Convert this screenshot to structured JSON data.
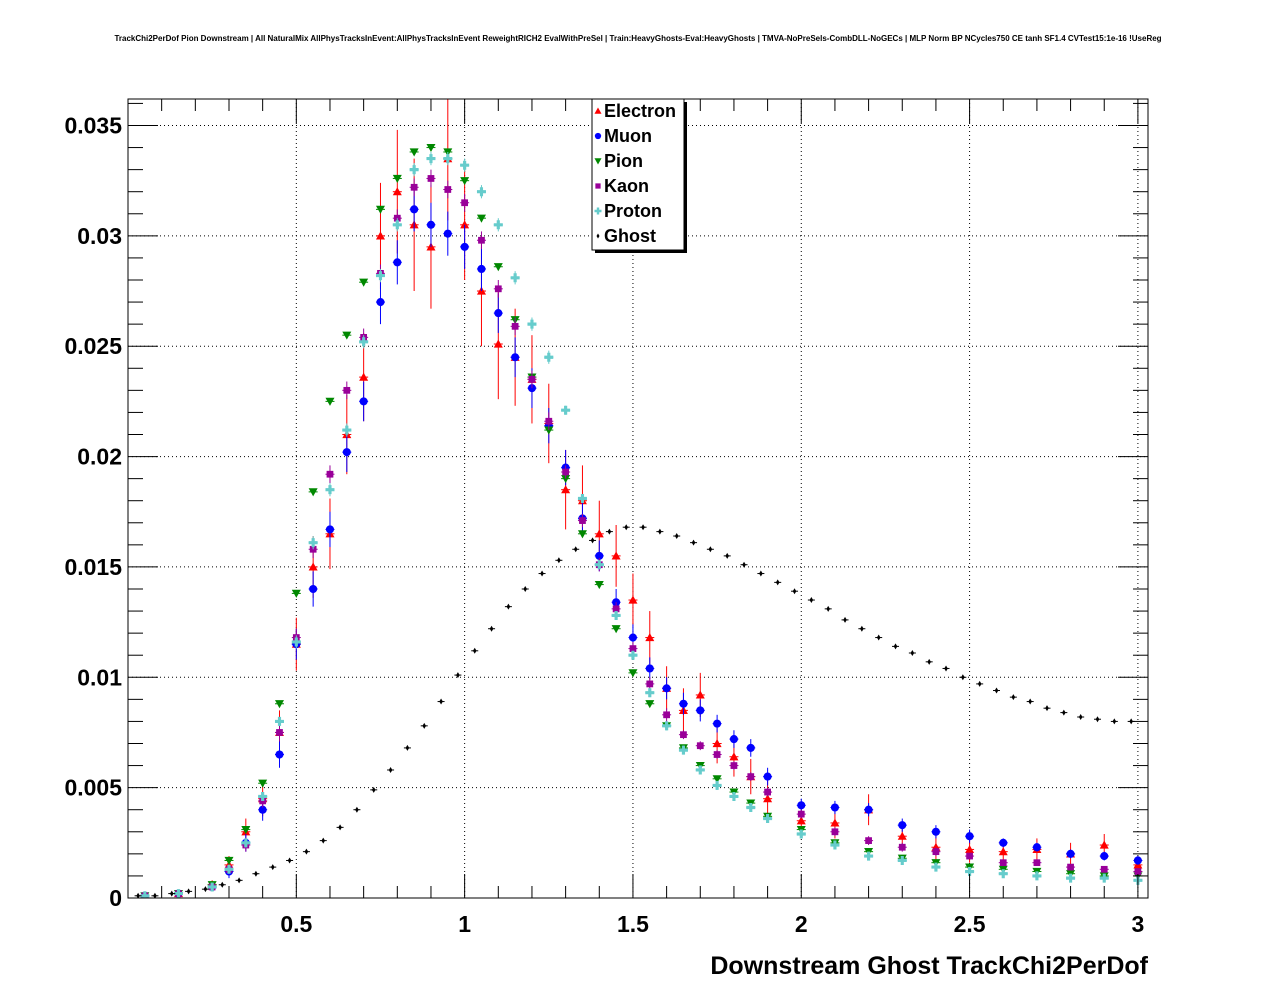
{
  "chart_data": {
    "type": "scatter",
    "title": "TrackChi2PerDof Pion Downstream | All NaturalMix AllPhysTracksInEvent:AllPhysTracksInEvent ReweightRICH2 EvalWithPreSel | Train:HeavyGhosts-Eval:HeavyGhosts | TMVA-NoPreSels-CombDLL-NoGECs | MLP Norm BP NCycles750 CE tanh SF1.4 CVTest15:1e-16 !UseReg",
    "xlabel": "Downstream Ghost TrackChi2PerDof",
    "ylabel": "",
    "xlim": [
      0,
      3.03
    ],
    "ylim": [
      0,
      0.0362
    ],
    "grid": true,
    "legend_position": "top-center",
    "x_ticks": [
      {
        "value": 0.5,
        "label": "0.5"
      },
      {
        "value": 1.0,
        "label": "1"
      },
      {
        "value": 1.5,
        "label": "1.5"
      },
      {
        "value": 2.0,
        "label": "2"
      },
      {
        "value": 2.5,
        "label": "2.5"
      },
      {
        "value": 3.0,
        "label": "3"
      }
    ],
    "y_ticks": [
      {
        "value": 0,
        "label": "0"
      },
      {
        "value": 0.005,
        "label": "0.005"
      },
      {
        "value": 0.01,
        "label": "0.01"
      },
      {
        "value": 0.015,
        "label": "0.015"
      },
      {
        "value": 0.02,
        "label": "0.02"
      },
      {
        "value": 0.025,
        "label": "0.025"
      },
      {
        "value": 0.03,
        "label": "0.03"
      },
      {
        "value": 0.035,
        "label": "0.035"
      }
    ],
    "x": [
      0.05,
      0.15,
      0.25,
      0.3,
      0.35,
      0.4,
      0.45,
      0.5,
      0.55,
      0.6,
      0.65,
      0.7,
      0.75,
      0.8,
      0.85,
      0.9,
      0.95,
      1.0,
      1.05,
      1.1,
      1.15,
      1.2,
      1.25,
      1.3,
      1.35,
      1.4,
      1.45,
      1.5,
      1.55,
      1.6,
      1.65,
      1.7,
      1.75,
      1.8,
      1.85,
      1.9,
      2.0,
      2.1,
      2.2,
      2.3,
      2.4,
      2.5,
      2.6,
      2.7,
      2.8,
      2.9,
      3.0
    ],
    "series": [
      {
        "name": "Electron",
        "color": "#ff0000",
        "marker": "triangle-up",
        "values": [
          0.0001,
          0.0002,
          0.0006,
          0.0015,
          0.003,
          0.0045,
          0.0075,
          0.0115,
          0.015,
          0.0165,
          0.021,
          0.0236,
          0.03,
          0.032,
          0.0305,
          0.0295,
          0.0335,
          0.0305,
          0.0275,
          0.0251,
          0.0245,
          0.0235,
          0.0215,
          0.0185,
          0.018,
          0.0165,
          0.0155,
          0.0135,
          0.0118,
          0.0095,
          0.0085,
          0.0092,
          0.007,
          0.0064,
          0.0055,
          0.0045,
          0.0035,
          0.0034,
          0.004,
          0.0028,
          0.0023,
          0.0022,
          0.0021,
          0.0022,
          0.002,
          0.0024,
          0.0015
        ],
        "errors": [
          5e-05,
          0.0001,
          0.0002,
          0.0004,
          0.0006,
          0.0008,
          0.001,
          0.0012,
          0.0014,
          0.0016,
          0.0018,
          0.002,
          0.0024,
          0.0028,
          0.003,
          0.0028,
          0.0028,
          0.0025,
          0.0025,
          0.0025,
          0.0022,
          0.002,
          0.0018,
          0.0018,
          0.0016,
          0.0015,
          0.0014,
          0.0012,
          0.0012,
          0.001,
          0.001,
          0.001,
          0.0009,
          0.0009,
          0.0008,
          0.0008,
          0.0007,
          0.0007,
          0.0007,
          0.0006,
          0.0006,
          0.0006,
          0.0005,
          0.0005,
          0.0005,
          0.0005,
          0.0004
        ]
      },
      {
        "name": "Muon",
        "color": "#0000ff",
        "marker": "circle",
        "values": [
          0.0001,
          0.0002,
          0.0005,
          0.0012,
          0.0025,
          0.004,
          0.0065,
          0.0115,
          0.014,
          0.0167,
          0.0202,
          0.0225,
          0.027,
          0.0288,
          0.0312,
          0.0305,
          0.0301,
          0.0295,
          0.0285,
          0.0265,
          0.0245,
          0.0231,
          0.0214,
          0.0195,
          0.0172,
          0.0155,
          0.0134,
          0.0118,
          0.0104,
          0.0095,
          0.0088,
          0.0085,
          0.0079,
          0.0072,
          0.0068,
          0.0055,
          0.0042,
          0.0041,
          0.004,
          0.0033,
          0.003,
          0.0028,
          0.0025,
          0.0023,
          0.002,
          0.0019,
          0.0017
        ],
        "errors": [
          5e-05,
          0.0001,
          0.0002,
          0.0003,
          0.0004,
          0.0005,
          0.0006,
          0.0007,
          0.0008,
          0.0008,
          0.0009,
          0.0009,
          0.001,
          0.001,
          0.001,
          0.001,
          0.001,
          0.001,
          0.001,
          0.0009,
          0.0009,
          0.0009,
          0.0008,
          0.0008,
          0.0007,
          0.0007,
          0.0006,
          0.0006,
          0.0005,
          0.0005,
          0.0005,
          0.0005,
          0.0004,
          0.0004,
          0.0004,
          0.0004,
          0.0003,
          0.0003,
          0.0003,
          0.0003,
          0.0003,
          0.0003,
          0.0002,
          0.0002,
          0.0002,
          0.0002,
          0.0002
        ]
      },
      {
        "name": "Pion",
        "color": "#008800",
        "marker": "triangle-down",
        "values": [
          0.0001,
          0.0002,
          0.0006,
          0.0017,
          0.0031,
          0.0052,
          0.0088,
          0.0138,
          0.0184,
          0.0225,
          0.0255,
          0.0279,
          0.0312,
          0.0326,
          0.0338,
          0.034,
          0.0338,
          0.0325,
          0.0308,
          0.0286,
          0.0262,
          0.0236,
          0.0212,
          0.019,
          0.0165,
          0.0142,
          0.0122,
          0.0102,
          0.0088,
          0.0078,
          0.0068,
          0.006,
          0.0054,
          0.0048,
          0.0043,
          0.0037,
          0.0031,
          0.0025,
          0.0021,
          0.0018,
          0.0016,
          0.0014,
          0.0013,
          0.0012,
          0.0011,
          0.001,
          0.001
        ],
        "errors": [
          2e-05,
          3e-05,
          5e-05,
          8e-05,
          0.0001,
          0.0001,
          0.0001,
          0.0001,
          0.0001,
          0.0001,
          0.0001,
          0.0001,
          0.0001,
          0.0001,
          0.0001,
          0.0001,
          0.0001,
          0.0001,
          0.0001,
          0.0001,
          0.0001,
          0.0001,
          0.0001,
          0.0001,
          0.0001,
          0.0001,
          0.0001,
          0.0001,
          0.0001,
          0.0001,
          0.0001,
          0.0001,
          0.0001,
          0.0001,
          0.0001,
          0.0001,
          0.0001,
          0.0001,
          0.0001,
          0.0001,
          0.0001,
          0.0001,
          0.0001,
          0.0001,
          0.0001,
          0.0001,
          0.0001
        ]
      },
      {
        "name": "Kaon",
        "color": "#990099",
        "marker": "square",
        "values": [
          0.0001,
          0.0002,
          0.0005,
          0.0013,
          0.0024,
          0.0044,
          0.0075,
          0.0118,
          0.0158,
          0.0192,
          0.023,
          0.0254,
          0.0283,
          0.0308,
          0.0322,
          0.0326,
          0.0321,
          0.0315,
          0.0298,
          0.0276,
          0.0259,
          0.0235,
          0.0216,
          0.0193,
          0.0171,
          0.0151,
          0.0131,
          0.0113,
          0.0097,
          0.0083,
          0.0074,
          0.0069,
          0.0065,
          0.006,
          0.0055,
          0.0048,
          0.0038,
          0.003,
          0.0026,
          0.0023,
          0.0021,
          0.0019,
          0.0016,
          0.0016,
          0.0014,
          0.0013,
          0.0012
        ],
        "errors": [
          3e-05,
          5e-05,
          0.0001,
          0.0002,
          0.0003,
          0.0003,
          0.0004,
          0.0004,
          0.0004,
          0.0004,
          0.0004,
          0.0004,
          0.0004,
          0.0004,
          0.0004,
          0.0004,
          0.0004,
          0.0004,
          0.0004,
          0.0004,
          0.0004,
          0.0004,
          0.0004,
          0.0003,
          0.0003,
          0.0003,
          0.0003,
          0.0003,
          0.0003,
          0.0003,
          0.0002,
          0.0002,
          0.0002,
          0.0002,
          0.0002,
          0.0002,
          0.0002,
          0.0002,
          0.0002,
          0.0002,
          0.0002,
          0.0001,
          0.0001,
          0.0001,
          0.0001,
          0.0001,
          0.0001
        ]
      },
      {
        "name": "Proton",
        "color": "#66cccc",
        "marker": "cross",
        "values": [
          0.0001,
          0.0002,
          0.0005,
          0.0013,
          0.0025,
          0.0046,
          0.008,
          0.0116,
          0.0161,
          0.0185,
          0.0212,
          0.0252,
          0.0282,
          0.0305,
          0.033,
          0.0335,
          0.0335,
          0.0332,
          0.032,
          0.0305,
          0.0281,
          0.026,
          0.0245,
          0.0221,
          0.0181,
          0.0151,
          0.0128,
          0.011,
          0.0093,
          0.0078,
          0.0067,
          0.0058,
          0.0051,
          0.0046,
          0.0041,
          0.0036,
          0.0029,
          0.0024,
          0.0019,
          0.0017,
          0.0014,
          0.0012,
          0.0011,
          0.001,
          0.0009,
          0.0009,
          0.0008
        ],
        "errors": [
          3e-05,
          4e-05,
          8e-05,
          0.0001,
          0.0002,
          0.0002,
          0.0002,
          0.0003,
          0.0003,
          0.0003,
          0.0003,
          0.0003,
          0.0003,
          0.0003,
          0.0003,
          0.0003,
          0.0003,
          0.0003,
          0.0003,
          0.0003,
          0.0003,
          0.0003,
          0.0003,
          0.0002,
          0.0002,
          0.0002,
          0.0002,
          0.0002,
          0.0002,
          0.0002,
          0.0002,
          0.0002,
          0.0002,
          0.0002,
          0.0001,
          0.0001,
          0.0001,
          0.0001,
          0.0001,
          0.0001,
          0.0001,
          0.0001,
          0.0001,
          0.0001,
          0.0001,
          0.0001,
          0.0001
        ]
      },
      {
        "name": "Ghost",
        "color": "#000000",
        "marker": "star",
        "x": [
          0.03,
          0.08,
          0.13,
          0.18,
          0.23,
          0.28,
          0.33,
          0.38,
          0.43,
          0.48,
          0.53,
          0.58,
          0.63,
          0.68,
          0.73,
          0.78,
          0.83,
          0.88,
          0.93,
          0.98,
          1.03,
          1.08,
          1.13,
          1.18,
          1.23,
          1.28,
          1.33,
          1.38,
          1.43,
          1.48,
          1.53,
          1.58,
          1.63,
          1.68,
          1.73,
          1.78,
          1.83,
          1.88,
          1.93,
          1.98,
          2.03,
          2.08,
          2.13,
          2.18,
          2.23,
          2.28,
          2.33,
          2.38,
          2.43,
          2.48,
          2.53,
          2.58,
          2.63,
          2.68,
          2.73,
          2.78,
          2.83,
          2.88,
          2.93,
          2.98
        ],
        "values": [
          0.0001,
          0.0001,
          0.0002,
          0.0003,
          0.0004,
          0.0006,
          0.0008,
          0.0011,
          0.0014,
          0.0017,
          0.0021,
          0.0026,
          0.0032,
          0.004,
          0.0049,
          0.0058,
          0.0068,
          0.0078,
          0.0089,
          0.0101,
          0.0112,
          0.0122,
          0.0132,
          0.014,
          0.0147,
          0.0153,
          0.0158,
          0.0162,
          0.0166,
          0.0168,
          0.0168,
          0.0166,
          0.0164,
          0.0161,
          0.0158,
          0.0155,
          0.0151,
          0.0147,
          0.0143,
          0.0139,
          0.0135,
          0.0131,
          0.0126,
          0.0122,
          0.0118,
          0.0114,
          0.0111,
          0.0107,
          0.0104,
          0.01,
          0.0097,
          0.0094,
          0.0091,
          0.0089,
          0.0086,
          0.0084,
          0.0082,
          0.0081,
          0.008,
          0.008
        ],
        "errors": []
      }
    ]
  }
}
